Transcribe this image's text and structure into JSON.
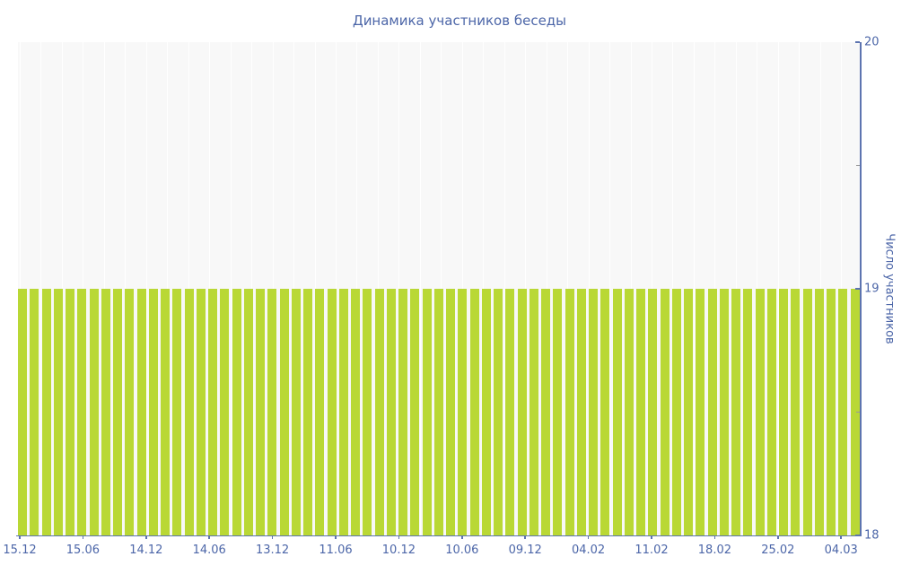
{
  "chart_data": {
    "type": "bar",
    "title": "Динамика участников беседы",
    "ylabel": "Число участников",
    "xlabel": "",
    "ylim": [
      18,
      20
    ],
    "yticks": [
      18,
      19,
      20
    ],
    "y_minor_ticks": [
      18.5,
      19.5
    ],
    "x_tick_labels": [
      "15.12",
      "15.06",
      "14.12",
      "14.06",
      "13.12",
      "11.06",
      "10.12",
      "10.06",
      "09.12",
      "04.02",
      "11.02",
      "18.02",
      "25.02",
      "04.03"
    ],
    "bar_count": 71,
    "values": [
      19,
      19,
      19,
      19,
      19,
      19,
      19,
      19,
      19,
      19,
      19,
      19,
      19,
      19,
      19,
      19,
      19,
      19,
      19,
      19,
      19,
      19,
      19,
      19,
      19,
      19,
      19,
      19,
      19,
      19,
      19,
      19,
      19,
      19,
      19,
      19,
      19,
      19,
      19,
      19,
      19,
      19,
      19,
      19,
      19,
      19,
      19,
      19,
      19,
      19,
      19,
      19,
      19,
      19,
      19,
      19,
      19,
      19,
      19,
      19,
      19,
      19,
      19,
      19,
      19,
      19,
      19,
      19,
      19,
      19,
      19
    ],
    "legend": "none",
    "grid": "minor-vertical-white",
    "colors": {
      "bar": "#b9d835",
      "text": "#4c66a8",
      "axis": "#5d74b0",
      "minor_tick": "#999999",
      "plot_background": "#f8f8f8",
      "page_background": "#ffffff"
    }
  }
}
